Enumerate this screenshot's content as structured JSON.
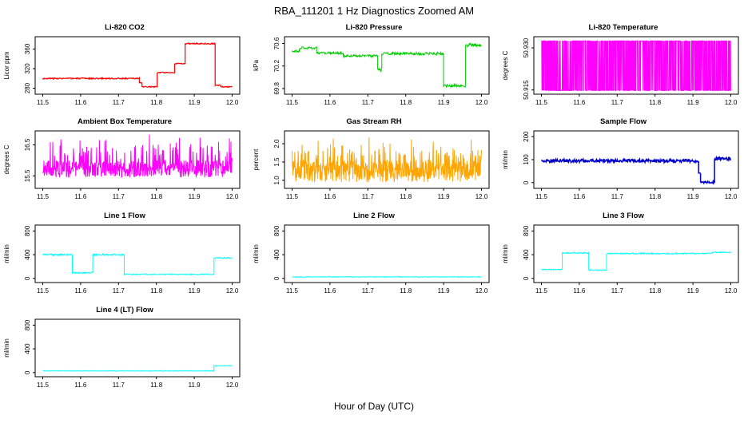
{
  "page": {
    "title": "RBA_111201 1 Hz Diagnostics Zoomed AM",
    "xlabel": "Hour of Day (UTC)"
  },
  "chart_data": [
    {
      "type": "line",
      "title": "Li-820 CO2",
      "ylabel": "Licor ppm",
      "color": "#FF0000",
      "stroke": 1.2,
      "xlim": [
        11.48,
        12.02
      ],
      "xticks": [
        11.5,
        11.6,
        11.7,
        11.8,
        11.9,
        12.0
      ],
      "ylim": [
        268,
        385
      ],
      "yticks": [
        280,
        320,
        360
      ],
      "ytick_labels": [
        "280",
        "320",
        "360"
      ],
      "series": {
        "mode": "segments",
        "segments": [
          {
            "x0": 11.5,
            "x1": 11.755,
            "y": 300,
            "noise": 1.2
          },
          {
            "x0": 11.755,
            "x1": 11.762,
            "y": 291,
            "noise": 1.0
          },
          {
            "x0": 11.762,
            "x1": 11.802,
            "y": 283,
            "noise": 1.0
          },
          {
            "x0": 11.802,
            "x1": 11.848,
            "y": 312,
            "noise": 1.0
          },
          {
            "x0": 11.848,
            "x1": 11.876,
            "y": 330,
            "noise": 1.0
          },
          {
            "x0": 11.876,
            "x1": 11.955,
            "y": 371,
            "noise": 1.2
          },
          {
            "x0": 11.955,
            "x1": 11.97,
            "y": 286,
            "noise": 1.0
          },
          {
            "x0": 11.97,
            "x1": 12.0,
            "y": 283,
            "noise": 1.0
          }
        ]
      }
    },
    {
      "type": "line",
      "title": "Li-820 Pressure",
      "ylabel": "kPa",
      "color": "#00CC00",
      "stroke": 1,
      "xlim": [
        11.48,
        12.02
      ],
      "xticks": [
        11.5,
        11.6,
        11.7,
        11.8,
        11.9,
        12.0
      ],
      "ylim": [
        69.7,
        70.72
      ],
      "yticks": [
        69.8,
        70.2,
        70.6
      ],
      "ytick_labels": [
        "69.8",
        "70.2",
        "70.6"
      ],
      "series": {
        "mode": "segments",
        "segments": [
          {
            "x0": 11.5,
            "x1": 11.52,
            "y": 70.46,
            "noise": 0.02
          },
          {
            "x0": 11.52,
            "x1": 11.565,
            "y": 70.52,
            "noise": 0.02
          },
          {
            "x0": 11.565,
            "x1": 11.635,
            "y": 70.43,
            "noise": 0.02
          },
          {
            "x0": 11.635,
            "x1": 11.726,
            "y": 70.38,
            "noise": 0.02
          },
          {
            "x0": 11.726,
            "x1": 11.737,
            "y": 70.13,
            "noise": 0.03
          },
          {
            "x0": 11.737,
            "x1": 11.9,
            "y": 70.42,
            "noise": 0.025
          },
          {
            "x0": 11.9,
            "x1": 11.958,
            "y": 69.85,
            "noise": 0.025
          },
          {
            "x0": 11.958,
            "x1": 12.0,
            "y": 70.57,
            "noise": 0.035
          }
        ]
      }
    },
    {
      "type": "line",
      "title": "Li-820 Temperature",
      "ylabel": "degrees C",
      "color": "#FF00FF",
      "stroke": 1,
      "xlim": [
        11.48,
        12.02
      ],
      "xticks": [
        11.5,
        11.6,
        11.7,
        11.8,
        11.9,
        12.0
      ],
      "ylim": [
        50.9135,
        50.934
      ],
      "yticks": [
        50.915,
        50.93
      ],
      "ytick_labels": [
        "50.915",
        "50.930"
      ],
      "series": {
        "mode": "binary",
        "x0": 11.5,
        "x1": 12.0,
        "lo": 50.9148,
        "hi": 50.9325,
        "step": 0.0006
      }
    },
    {
      "type": "line",
      "title": "Ambient Box Temperature",
      "ylabel": "degrees C",
      "color": "#FF00FF",
      "stroke": 1,
      "xlim": [
        11.48,
        12.02
      ],
      "xticks": [
        11.5,
        11.6,
        11.7,
        11.8,
        11.9,
        12.0
      ],
      "ylim": [
        15.1,
        16.95
      ],
      "yticks": [
        15.5,
        16.5
      ],
      "ytick_labels": [
        "15.5",
        "16.5"
      ],
      "series": {
        "mode": "noisy",
        "x0": 11.5,
        "x1": 12.0,
        "base": 15.45,
        "spread": 0.55,
        "spike_prob": 0.22,
        "spike_extra": 0.85,
        "step": 0.0008
      }
    },
    {
      "type": "line",
      "title": "Gas Stream RH",
      "ylabel": "percent",
      "color": "#FFA500",
      "stroke": 1,
      "xlim": [
        11.48,
        12.02
      ],
      "xticks": [
        11.5,
        11.6,
        11.7,
        11.8,
        11.9,
        12.0
      ],
      "ylim": [
        0.78,
        2.35
      ],
      "yticks": [
        1.0,
        1.5,
        2.0
      ],
      "ytick_labels": [
        "1.0",
        "1.5",
        "2.0"
      ],
      "series": {
        "mode": "noisy",
        "x0": 11.5,
        "x1": 12.0,
        "base": 0.95,
        "spread": 0.6,
        "spike_prob": 0.3,
        "spike_extra": 0.65,
        "step": 0.0008
      }
    },
    {
      "type": "line",
      "title": "Sample Flow",
      "ylabel": "ml/min",
      "color": "#0000CD",
      "stroke": 1.5,
      "xlim": [
        11.48,
        12.02
      ],
      "xticks": [
        11.5,
        11.6,
        11.7,
        11.8,
        11.9,
        12.0
      ],
      "ylim": [
        -25,
        225
      ],
      "yticks": [
        0,
        100,
        200
      ],
      "ytick_labels": [
        "0",
        "100",
        "200"
      ],
      "series": {
        "mode": "segments",
        "segments": [
          {
            "x0": 11.5,
            "x1": 11.915,
            "y": 95,
            "noise": 7
          },
          {
            "x0": 11.915,
            "x1": 11.92,
            "y": 40,
            "noise": 5
          },
          {
            "x0": 11.92,
            "x1": 11.957,
            "y": 2,
            "noise": 4
          },
          {
            "x0": 11.957,
            "x1": 12.0,
            "y": 103,
            "noise": 7
          }
        ]
      }
    },
    {
      "type": "line",
      "title": "Line 1 Flow",
      "ylabel": "ml/min",
      "color": "#00FFFF",
      "stroke": 1,
      "xlim": [
        11.48,
        12.02
      ],
      "xticks": [
        11.5,
        11.6,
        11.7,
        11.8,
        11.9,
        12.0
      ],
      "ylim": [
        -70,
        900
      ],
      "yticks": [
        0,
        400,
        800
      ],
      "ytick_labels": [
        "0",
        "400",
        "800"
      ],
      "series": {
        "mode": "segments",
        "segments": [
          {
            "x0": 11.5,
            "x1": 11.578,
            "y": 400,
            "noise": 14
          },
          {
            "x0": 11.578,
            "x1": 11.632,
            "y": 95,
            "noise": 10
          },
          {
            "x0": 11.632,
            "x1": 11.715,
            "y": 400,
            "noise": 14
          },
          {
            "x0": 11.715,
            "x1": 11.952,
            "y": 70,
            "noise": 8
          },
          {
            "x0": 11.952,
            "x1": 12.0,
            "y": 345,
            "noise": 10
          }
        ]
      }
    },
    {
      "type": "line",
      "title": "Line 2 Flow",
      "ylabel": "ml/min",
      "color": "#00FFFF",
      "stroke": 1,
      "xlim": [
        11.48,
        12.02
      ],
      "xticks": [
        11.5,
        11.6,
        11.7,
        11.8,
        11.9,
        12.0
      ],
      "ylim": [
        -70,
        900
      ],
      "yticks": [
        0,
        400,
        800
      ],
      "ytick_labels": [
        "0",
        "400",
        "800"
      ],
      "series": {
        "mode": "segments",
        "segments": [
          {
            "x0": 11.5,
            "x1": 12.0,
            "y": 25,
            "noise": 5
          }
        ]
      }
    },
    {
      "type": "line",
      "title": "Line 3 Flow",
      "ylabel": "ml/min",
      "color": "#00FFFF",
      "stroke": 1,
      "xlim": [
        11.48,
        12.02
      ],
      "xticks": [
        11.5,
        11.6,
        11.7,
        11.8,
        11.9,
        12.0
      ],
      "ylim": [
        -70,
        900
      ],
      "yticks": [
        0,
        400,
        800
      ],
      "ytick_labels": [
        "0",
        "400",
        "800"
      ],
      "series": {
        "mode": "segments",
        "segments": [
          {
            "x0": 11.5,
            "x1": 11.555,
            "y": 150,
            "noise": 8
          },
          {
            "x0": 11.555,
            "x1": 11.625,
            "y": 430,
            "noise": 10
          },
          {
            "x0": 11.625,
            "x1": 11.672,
            "y": 140,
            "noise": 8
          },
          {
            "x0": 11.672,
            "x1": 11.95,
            "y": 420,
            "noise": 10
          },
          {
            "x0": 11.95,
            "x1": 12.0,
            "y": 440,
            "noise": 8
          }
        ]
      }
    },
    {
      "type": "line",
      "title": "Line 4 (LT) Flow",
      "ylabel": "ml/min",
      "color": "#00FFFF",
      "stroke": 1,
      "xlim": [
        11.48,
        12.02
      ],
      "xticks": [
        11.5,
        11.6,
        11.7,
        11.8,
        11.9,
        12.0
      ],
      "ylim": [
        -70,
        900
      ],
      "yticks": [
        0,
        400,
        800
      ],
      "ytick_labels": [
        "0",
        "400",
        "800"
      ],
      "series": {
        "mode": "segments",
        "segments": [
          {
            "x0": 11.5,
            "x1": 11.952,
            "y": 28,
            "noise": 5
          },
          {
            "x0": 11.952,
            "x1": 12.0,
            "y": 115,
            "noise": 6
          }
        ]
      }
    }
  ]
}
